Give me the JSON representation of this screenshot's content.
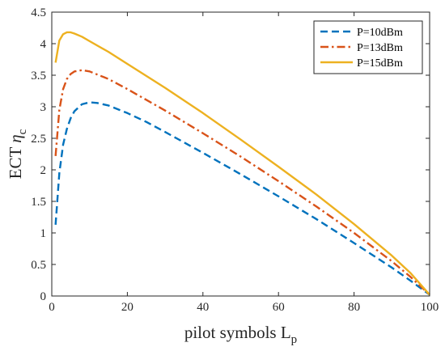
{
  "chart_data": {
    "type": "line",
    "xlabel": {
      "main": "pilot symbols  L",
      "sub": "p"
    },
    "ylabel": {
      "main": "ECT ",
      "greek": "η",
      "sub": "c"
    },
    "xlim": [
      0,
      100
    ],
    "ylim": [
      0,
      4.5
    ],
    "xticks": [
      0,
      20,
      40,
      60,
      80,
      100
    ],
    "yticks": [
      0,
      0.5,
      1,
      1.5,
      2,
      2.5,
      3,
      3.5,
      4,
      4.5
    ],
    "xtick_labels": [
      "0",
      "20",
      "40",
      "60",
      "80",
      "100"
    ],
    "ytick_labels": [
      "0",
      "0.5",
      "1",
      "1.5",
      "2",
      "2.5",
      "3",
      "3.5",
      "4",
      "4.5"
    ],
    "grid": false,
    "legend_position": "top-right",
    "series": [
      {
        "name": "P=10dBm",
        "color": "#0072BD",
        "dash": "dashed",
        "x": [
          1,
          2,
          3,
          4,
          5,
          6,
          8,
          10,
          12,
          15,
          20,
          25,
          30,
          40,
          50,
          60,
          70,
          80,
          90,
          95,
          100
        ],
        "y": [
          1.13,
          1.95,
          2.4,
          2.65,
          2.82,
          2.93,
          3.04,
          3.07,
          3.06,
          3.02,
          2.9,
          2.76,
          2.6,
          2.27,
          1.93,
          1.58,
          1.22,
          0.84,
          0.45,
          0.24,
          0.02
        ]
      },
      {
        "name": "P=13dBm",
        "color": "#D95319",
        "dash": "dash-dot",
        "x": [
          1,
          2,
          3,
          4,
          5,
          6,
          8,
          10,
          15,
          20,
          30,
          40,
          50,
          60,
          70,
          80,
          90,
          95,
          100
        ],
        "y": [
          2.22,
          2.95,
          3.28,
          3.44,
          3.52,
          3.56,
          3.58,
          3.56,
          3.44,
          3.28,
          2.94,
          2.58,
          2.21,
          1.82,
          1.42,
          1.0,
          0.55,
          0.3,
          0.02
        ]
      },
      {
        "name": "P=15dBm",
        "color": "#EDB120",
        "dash": "solid",
        "x": [
          1,
          2,
          3,
          4,
          5,
          6,
          8,
          10,
          15,
          20,
          30,
          40,
          50,
          60,
          70,
          80,
          90,
          95,
          100
        ],
        "y": [
          3.7,
          4.05,
          4.15,
          4.18,
          4.18,
          4.16,
          4.11,
          4.04,
          3.87,
          3.68,
          3.3,
          2.9,
          2.48,
          2.05,
          1.61,
          1.14,
          0.64,
          0.36,
          0.02
        ]
      }
    ]
  }
}
